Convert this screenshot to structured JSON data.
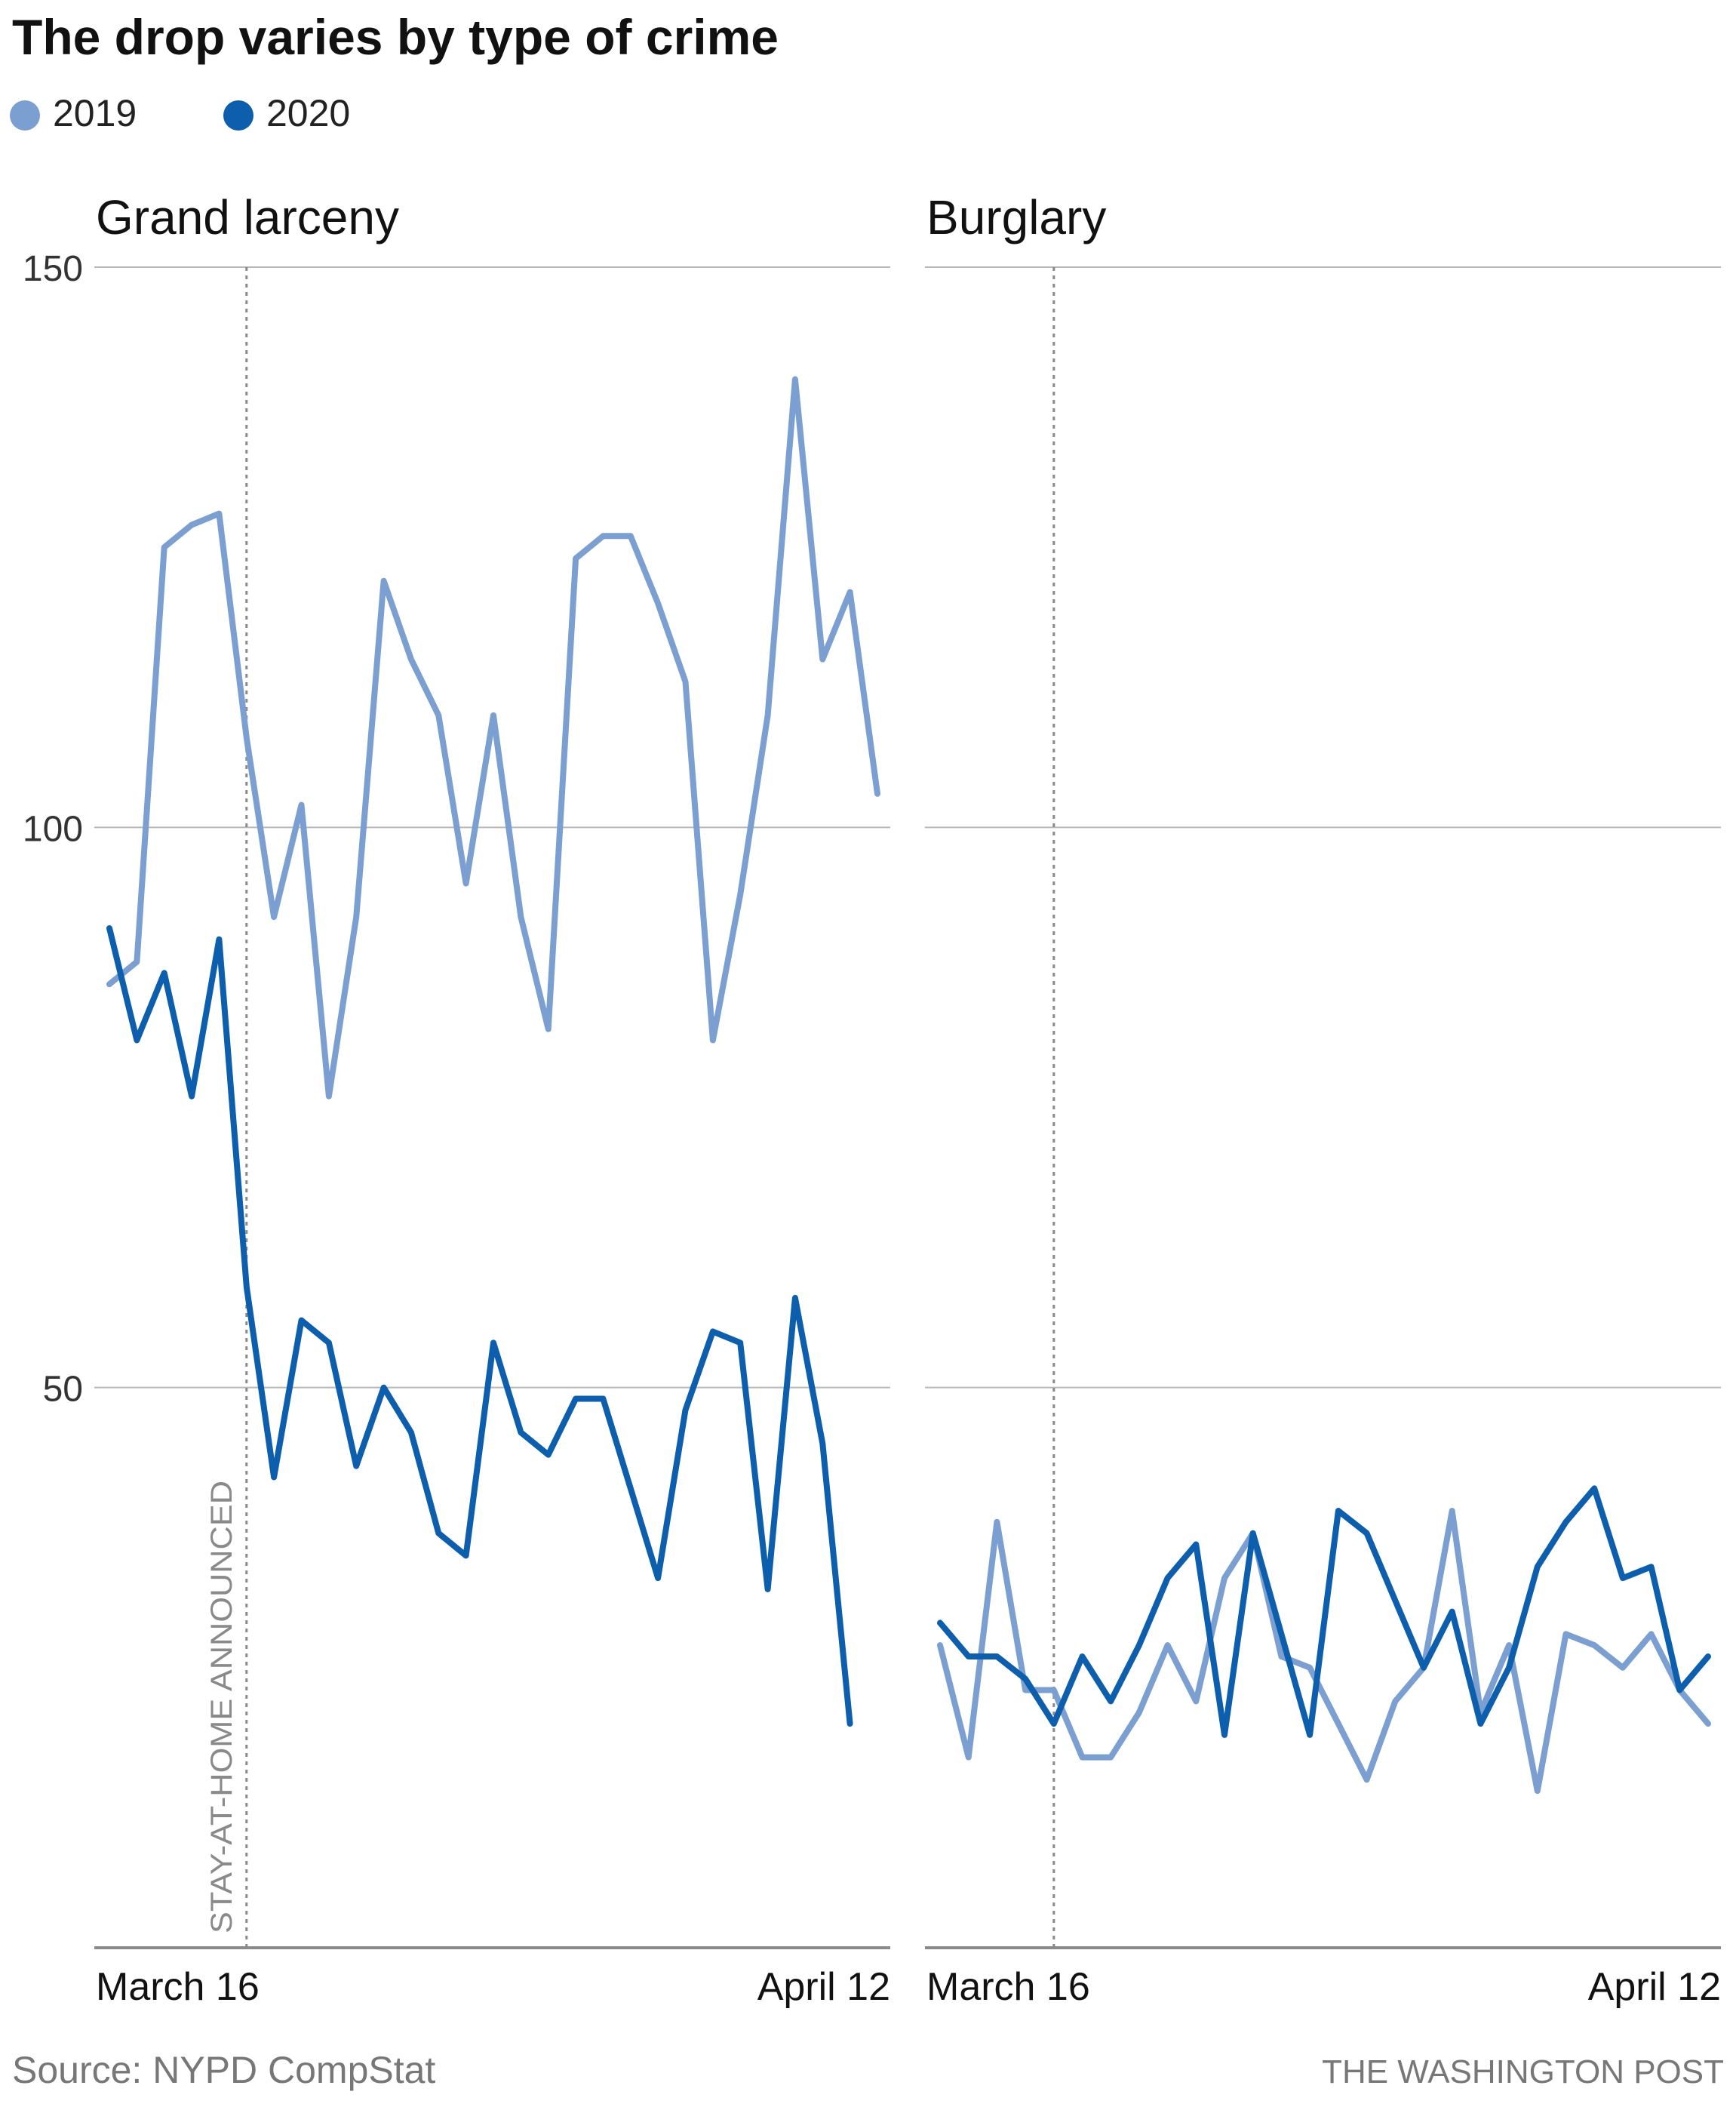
{
  "title": "The drop varies by type of crime",
  "legend": [
    {
      "label": "2019",
      "color": "#7b9fd0"
    },
    {
      "label": "2020",
      "color": "#0d5fae"
    }
  ],
  "annotation": "STAY-AT-HOME ANNOUNCED",
  "source": "Source: NYPD CompStat",
  "credit": "THE WASHINGTON POST",
  "chart_data": [
    {
      "type": "line",
      "title": "Grand larceny",
      "y_ticks": [
        "150",
        "100",
        "50"
      ],
      "ylim": [
        0,
        150
      ],
      "x_tick_labels": [
        "March 16",
        "April 12"
      ],
      "x_tick_index": [
        5,
        32
      ],
      "vline_index": 5,
      "grid": true,
      "series": [
        {
          "name": "2019",
          "color": "#7b9fd0",
          "values": [
            86,
            88,
            125,
            127,
            128,
            108,
            92,
            102,
            76,
            92,
            122,
            115,
            110,
            95,
            110,
            92,
            82,
            124,
            126,
            126,
            120,
            113,
            81,
            94,
            110,
            140,
            115,
            121,
            103
          ]
        },
        {
          "name": "2020",
          "color": "#0d5fae",
          "values": [
            91,
            81,
            87,
            76,
            90,
            59,
            42,
            56,
            54,
            43,
            50,
            46,
            37,
            35,
            54,
            46,
            44,
            49,
            49,
            41,
            33,
            48,
            55,
            54,
            32,
            58,
            45,
            20
          ]
        }
      ]
    },
    {
      "type": "line",
      "title": "Burglary",
      "ylim": [
        0,
        150
      ],
      "x_tick_labels": [
        "March 16",
        "April 12"
      ],
      "x_tick_index": [
        4,
        27
      ],
      "vline_index": 4,
      "grid": true,
      "series": [
        {
          "name": "2019",
          "color": "#7b9fd0",
          "values": [
            27,
            17,
            38,
            23,
            23,
            17,
            17,
            21,
            27,
            22,
            33,
            37,
            26,
            25,
            20,
            15,
            22,
            25,
            39,
            21,
            27,
            14,
            28,
            27,
            25,
            28,
            23,
            20
          ]
        },
        {
          "name": "2020",
          "color": "#0d5fae",
          "values": [
            29,
            26,
            26,
            24,
            20,
            26,
            22,
            27,
            33,
            36,
            19,
            37,
            28,
            19,
            39,
            37,
            31,
            25,
            30,
            20,
            25,
            34,
            38,
            41,
            33,
            34,
            23,
            26
          ]
        }
      ]
    }
  ]
}
